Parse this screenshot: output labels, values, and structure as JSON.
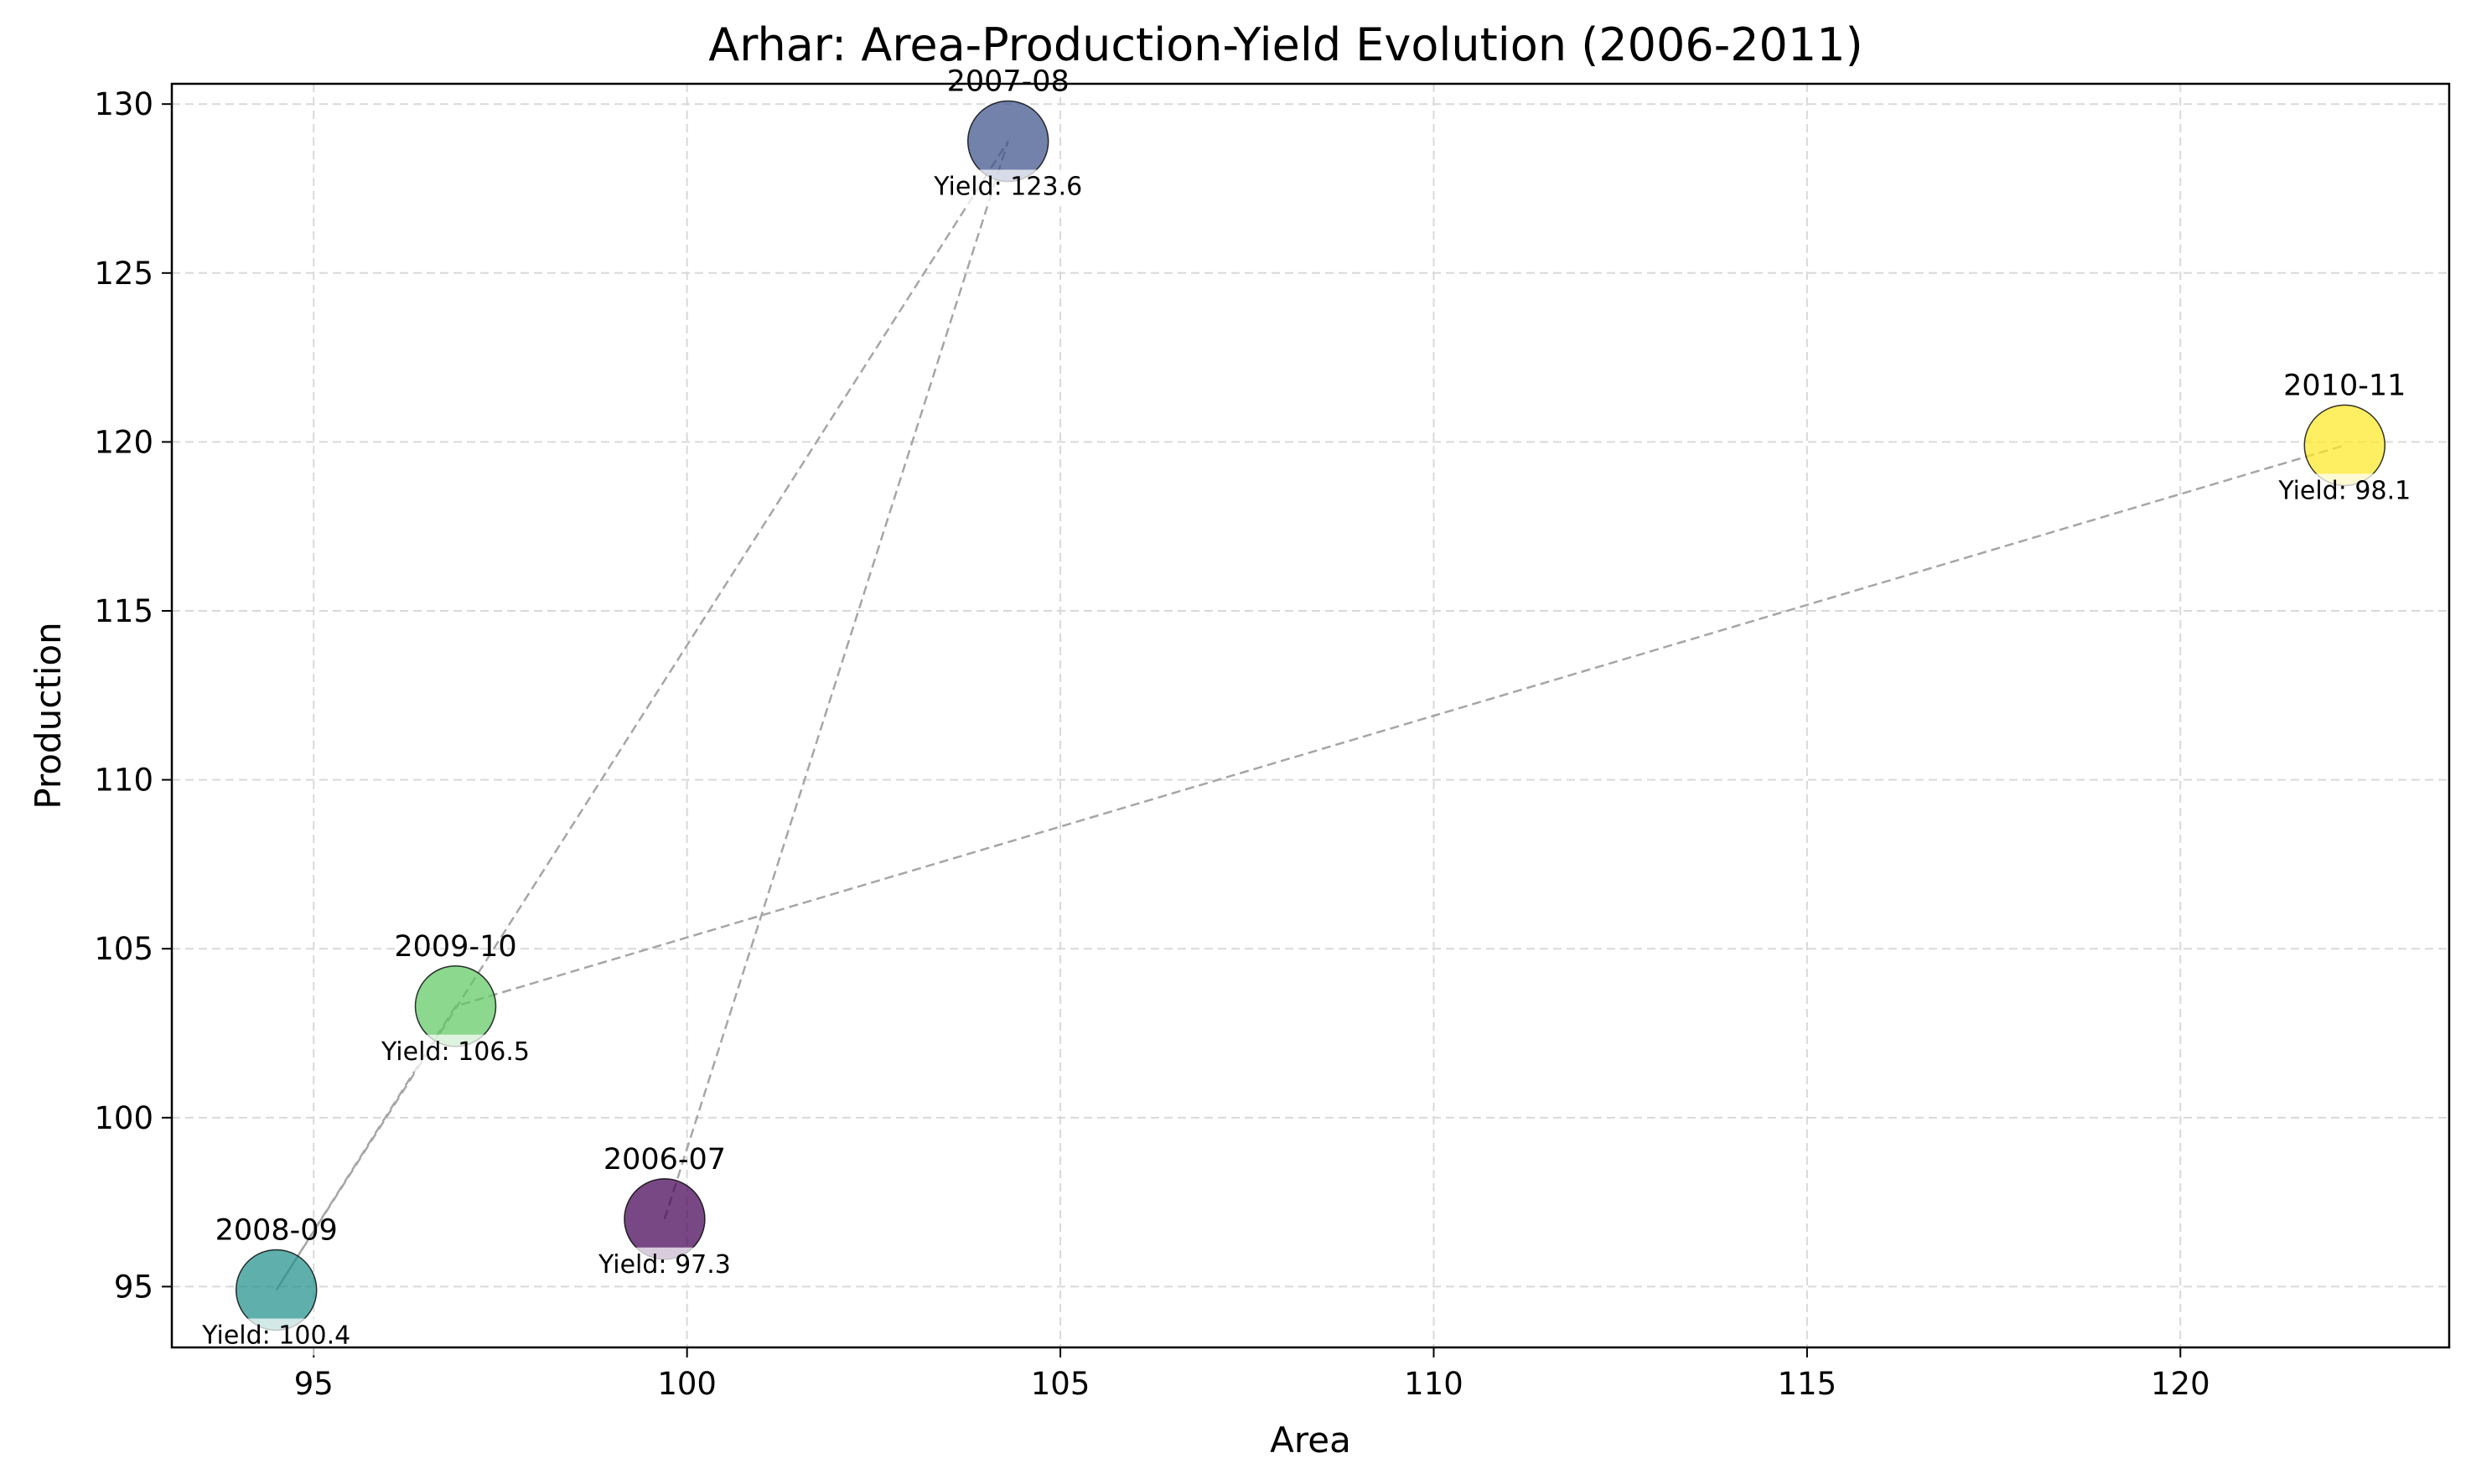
{
  "chart_data": {
    "type": "scatter",
    "title": "Arhar: Area-Production-Yield Evolution (2006-2011)",
    "xlabel": "Area",
    "ylabel": "Production",
    "xlim": [
      93.1,
      123.6
    ],
    "ylim": [
      93.2,
      130.6
    ],
    "xticks": [
      95,
      100,
      105,
      110,
      115,
      120
    ],
    "yticks": [
      95,
      100,
      105,
      110,
      115,
      120,
      125,
      130
    ],
    "grid": true,
    "connecting_line": "dashed",
    "points": [
      {
        "label": "2006-07",
        "x": 99.7,
        "y": 97.0,
        "yield_text": "Yield: 97.3",
        "color": "#440154"
      },
      {
        "label": "2007-08",
        "x": 104.3,
        "y": 128.9,
        "yield_text": "Yield: 123.6",
        "color": "#3b528b"
      },
      {
        "label": "2008-09",
        "x": 94.5,
        "y": 94.9,
        "yield_text": "Yield: 100.4",
        "color": "#21918c"
      },
      {
        "label": "2009-10",
        "x": 96.9,
        "y": 103.3,
        "yield_text": "Yield: 106.5",
        "color": "#5ec962"
      },
      {
        "label": "2010-11",
        "x": 122.2,
        "y": 119.9,
        "yield_text": "Yield: 98.1",
        "color": "#fde725"
      }
    ]
  }
}
